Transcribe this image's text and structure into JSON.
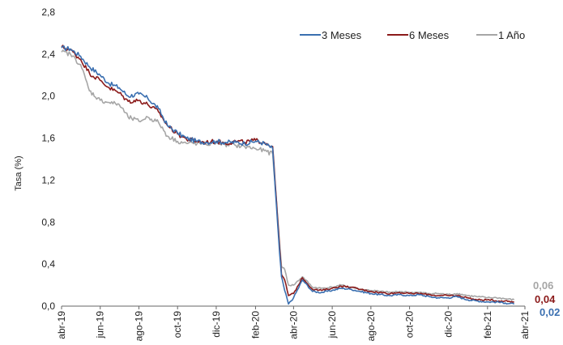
{
  "chart_data": {
    "type": "line",
    "title": "",
    "xlabel": "",
    "ylabel": "Tasa (%)",
    "ylim": [
      0,
      2.8
    ],
    "yticks": [
      "0,0",
      "0,4",
      "0,8",
      "1,2",
      "1,6",
      "2,0",
      "2,4",
      "2,8"
    ],
    "xticks": [
      "abr-19",
      "jun-19",
      "ago-19",
      "oct-19",
      "dic-19",
      "feb-20",
      "abr-20",
      "jun-20",
      "ago-20",
      "oct-20",
      "dic-20",
      "feb-21",
      "abr-21"
    ],
    "grid": false,
    "legend": "top-right",
    "series": [
      {
        "name": "3 Meses",
        "color": "#3a6fb0",
        "end_label": "0,02",
        "points": [
          [
            "2019-04-01",
            2.46
          ],
          [
            "2019-04-15",
            2.45
          ],
          [
            "2019-05-01",
            2.38
          ],
          [
            "2019-05-15",
            2.28
          ],
          [
            "2019-06-01",
            2.2
          ],
          [
            "2019-06-15",
            2.12
          ],
          [
            "2019-07-01",
            2.08
          ],
          [
            "2019-07-15",
            2.0
          ],
          [
            "2019-08-01",
            2.02
          ],
          [
            "2019-08-15",
            1.98
          ],
          [
            "2019-09-01",
            1.88
          ],
          [
            "2019-09-15",
            1.72
          ],
          [
            "2019-10-01",
            1.65
          ],
          [
            "2019-10-15",
            1.6
          ],
          [
            "2019-11-01",
            1.57
          ],
          [
            "2019-11-15",
            1.56
          ],
          [
            "2019-12-01",
            1.57
          ],
          [
            "2019-12-15",
            1.56
          ],
          [
            "2020-01-01",
            1.56
          ],
          [
            "2020-01-15",
            1.55
          ],
          [
            "2020-02-01",
            1.57
          ],
          [
            "2020-02-15",
            1.55
          ],
          [
            "2020-02-28",
            1.5
          ],
          [
            "2020-03-05",
            0.95
          ],
          [
            "2020-03-10",
            0.5
          ],
          [
            "2020-03-13",
            0.28
          ],
          [
            "2020-03-18",
            0.15
          ],
          [
            "2020-03-24",
            0.02
          ],
          [
            "2020-04-01",
            0.08
          ],
          [
            "2020-04-15",
            0.25
          ],
          [
            "2020-05-01",
            0.14
          ],
          [
            "2020-05-15",
            0.13
          ],
          [
            "2020-06-01",
            0.15
          ],
          [
            "2020-06-15",
            0.17
          ],
          [
            "2020-07-01",
            0.16
          ],
          [
            "2020-07-15",
            0.14
          ],
          [
            "2020-08-01",
            0.12
          ],
          [
            "2020-08-15",
            0.11
          ],
          [
            "2020-09-01",
            0.1
          ],
          [
            "2020-09-15",
            0.11
          ],
          [
            "2020-10-01",
            0.1
          ],
          [
            "2020-10-15",
            0.11
          ],
          [
            "2020-11-01",
            0.09
          ],
          [
            "2020-11-15",
            0.08
          ],
          [
            "2020-12-01",
            0.08
          ],
          [
            "2020-12-15",
            0.09
          ],
          [
            "2021-01-01",
            0.06
          ],
          [
            "2021-01-15",
            0.05
          ],
          [
            "2021-02-01",
            0.04
          ],
          [
            "2021-02-15",
            0.04
          ],
          [
            "2021-03-01",
            0.03
          ],
          [
            "2021-03-15",
            0.02
          ]
        ]
      },
      {
        "name": "6 Meses",
        "color": "#8b1a1a",
        "end_label": "0,04",
        "points": [
          [
            "2019-04-01",
            2.47
          ],
          [
            "2019-04-15",
            2.44
          ],
          [
            "2019-05-01",
            2.35
          ],
          [
            "2019-05-15",
            2.22
          ],
          [
            "2019-06-01",
            2.15
          ],
          [
            "2019-06-15",
            2.08
          ],
          [
            "2019-07-01",
            2.03
          ],
          [
            "2019-07-15",
            1.95
          ],
          [
            "2019-08-01",
            1.96
          ],
          [
            "2019-08-15",
            1.92
          ],
          [
            "2019-09-01",
            1.85
          ],
          [
            "2019-09-15",
            1.72
          ],
          [
            "2019-10-01",
            1.64
          ],
          [
            "2019-10-15",
            1.59
          ],
          [
            "2019-11-01",
            1.57
          ],
          [
            "2019-11-15",
            1.56
          ],
          [
            "2019-12-01",
            1.57
          ],
          [
            "2019-12-15",
            1.55
          ],
          [
            "2020-01-01",
            1.57
          ],
          [
            "2020-01-15",
            1.56
          ],
          [
            "2020-02-01",
            1.58
          ],
          [
            "2020-02-15",
            1.56
          ],
          [
            "2020-02-28",
            1.52
          ],
          [
            "2020-03-05",
            1.0
          ],
          [
            "2020-03-10",
            0.55
          ],
          [
            "2020-03-13",
            0.3
          ],
          [
            "2020-03-18",
            0.25
          ],
          [
            "2020-03-24",
            0.1
          ],
          [
            "2020-04-01",
            0.12
          ],
          [
            "2020-04-15",
            0.27
          ],
          [
            "2020-05-01",
            0.16
          ],
          [
            "2020-05-15",
            0.15
          ],
          [
            "2020-06-01",
            0.17
          ],
          [
            "2020-06-15",
            0.19
          ],
          [
            "2020-07-01",
            0.18
          ],
          [
            "2020-07-15",
            0.16
          ],
          [
            "2020-08-01",
            0.14
          ],
          [
            "2020-08-15",
            0.13
          ],
          [
            "2020-09-01",
            0.12
          ],
          [
            "2020-09-15",
            0.13
          ],
          [
            "2020-10-01",
            0.12
          ],
          [
            "2020-10-15",
            0.12
          ],
          [
            "2020-11-01",
            0.11
          ],
          [
            "2020-11-15",
            0.1
          ],
          [
            "2020-12-01",
            0.1
          ],
          [
            "2020-12-15",
            0.1
          ],
          [
            "2021-01-01",
            0.08
          ],
          [
            "2021-01-15",
            0.06
          ],
          [
            "2021-02-01",
            0.06
          ],
          [
            "2021-02-15",
            0.05
          ],
          [
            "2021-03-01",
            0.05
          ],
          [
            "2021-03-15",
            0.04
          ]
        ]
      },
      {
        "name": "1 Año",
        "color": "#a6a6a6",
        "end_label": "0,06",
        "points": [
          [
            "2019-04-01",
            2.42
          ],
          [
            "2019-04-15",
            2.4
          ],
          [
            "2019-05-01",
            2.3
          ],
          [
            "2019-05-15",
            2.05
          ],
          [
            "2019-06-01",
            1.96
          ],
          [
            "2019-06-15",
            1.94
          ],
          [
            "2019-07-01",
            1.92
          ],
          [
            "2019-07-15",
            1.8
          ],
          [
            "2019-08-01",
            1.76
          ],
          [
            "2019-08-15",
            1.8
          ],
          [
            "2019-09-01",
            1.75
          ],
          [
            "2019-09-15",
            1.62
          ],
          [
            "2019-10-01",
            1.57
          ],
          [
            "2019-10-15",
            1.55
          ],
          [
            "2019-11-01",
            1.55
          ],
          [
            "2019-11-15",
            1.54
          ],
          [
            "2019-12-01",
            1.56
          ],
          [
            "2019-12-15",
            1.54
          ],
          [
            "2020-01-01",
            1.53
          ],
          [
            "2020-01-15",
            1.52
          ],
          [
            "2020-02-01",
            1.5
          ],
          [
            "2020-02-15",
            1.48
          ],
          [
            "2020-02-28",
            1.45
          ],
          [
            "2020-03-05",
            1.0
          ],
          [
            "2020-03-10",
            0.6
          ],
          [
            "2020-03-13",
            0.38
          ],
          [
            "2020-03-18",
            0.35
          ],
          [
            "2020-03-24",
            0.2
          ],
          [
            "2020-04-01",
            0.2
          ],
          [
            "2020-04-15",
            0.28
          ],
          [
            "2020-05-01",
            0.18
          ],
          [
            "2020-05-15",
            0.17
          ],
          [
            "2020-06-01",
            0.18
          ],
          [
            "2020-06-15",
            0.2
          ],
          [
            "2020-07-01",
            0.18
          ],
          [
            "2020-07-15",
            0.16
          ],
          [
            "2020-08-01",
            0.15
          ],
          [
            "2020-08-15",
            0.14
          ],
          [
            "2020-09-01",
            0.13
          ],
          [
            "2020-09-15",
            0.14
          ],
          [
            "2020-10-01",
            0.13
          ],
          [
            "2020-10-15",
            0.13
          ],
          [
            "2020-11-01",
            0.12
          ],
          [
            "2020-11-15",
            0.12
          ],
          [
            "2020-12-01",
            0.11
          ],
          [
            "2020-12-15",
            0.12
          ],
          [
            "2021-01-01",
            0.1
          ],
          [
            "2021-01-15",
            0.09
          ],
          [
            "2021-02-01",
            0.08
          ],
          [
            "2021-02-15",
            0.08
          ],
          [
            "2021-03-01",
            0.07
          ],
          [
            "2021-03-15",
            0.06
          ]
        ]
      }
    ]
  }
}
